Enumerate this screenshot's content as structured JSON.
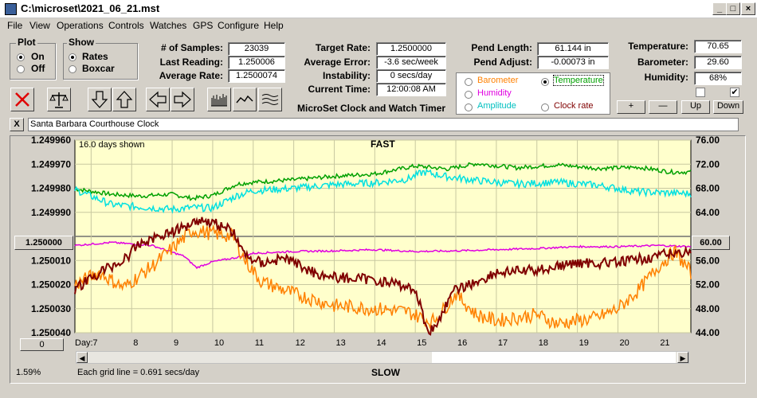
{
  "window": {
    "title": "C:\\microset\\2021_06_21.mst"
  },
  "menu": [
    "File",
    "View",
    "Operations",
    "Controls",
    "Watches",
    "GPS",
    "Configure",
    "Help"
  ],
  "plot": {
    "label": "Plot",
    "on": "On",
    "off": "Off",
    "selected": "On"
  },
  "show": {
    "label": "Show",
    "rates": "Rates",
    "boxcar": "Boxcar",
    "selected": "Rates"
  },
  "stats": {
    "samples_label": "# of Samples:",
    "samples": "23039",
    "last_label": "Last Reading:",
    "last": "1.250006",
    "avg_label": "Average Rate:",
    "avg": "1.2500074",
    "target_label": "Target Rate:",
    "target": "1.2500000",
    "avgerr_label": "Average Error:",
    "avgerr": "-3.6 sec/week",
    "instab_label": "Instability:",
    "instab": "0 secs/day",
    "time_label": "Current Time:",
    "time": "12:00:08 AM",
    "pendlen_label": "Pend Length:",
    "pendlen": "61.144 in",
    "pendadj_label": "Pend Adjust:",
    "pendadj": "-0.00073 in",
    "temp_label": "Temperature:",
    "temp": "70.65",
    "baro_label": "Barometer:",
    "baro": "29.60",
    "hum_label": "Humidity:",
    "hum": "68%"
  },
  "app_title": "MicroSet Clock and Watch Timer",
  "aux": {
    "barometer": "Barometer",
    "temperature": "Temperature",
    "humidity": "Humidity",
    "amplitude": "Amplitude",
    "clockrate": "Clock rate",
    "selected": "Temperature",
    "colors": {
      "barometer": "#ff8000",
      "temperature": "#00a000",
      "humidity": "#e000e0",
      "amplitude": "#00c0c0",
      "clockrate": "#800000"
    }
  },
  "small_buttons": {
    "plus": "+",
    "minus": "—",
    "up": "Up",
    "down": "Down"
  },
  "checkboxes": [
    {
      "checked": false
    },
    {
      "checked": true
    }
  ],
  "clock_name": "Santa Barbara Courthouse Clock",
  "close_x": "X",
  "chart_top": {
    "days": "16.0 days shown",
    "fast": "FAST"
  },
  "chart_bottom": {
    "day_label": "Day:",
    "grid": "Each grid line = 0.691 secs/day",
    "slow": "SLOW",
    "percent": "1.59%",
    "zero_button": "0"
  },
  "center_buttons": {
    "left": "1.250000",
    "right": "60.00"
  },
  "chart_data": {
    "type": "line",
    "x_label": "Day:",
    "x_ticks": [
      7,
      8,
      9,
      10,
      11,
      12,
      13,
      14,
      15,
      16,
      17,
      18,
      19,
      20,
      21
    ],
    "xlim": [
      6.6,
      21.8
    ],
    "y_left_ticks": [
      "1.249960",
      "1.249970",
      "1.249980",
      "1.249990",
      "1.250000",
      "1.250010",
      "1.250020",
      "1.250030",
      "1.250040"
    ],
    "y_left_range": [
      1.24996,
      1.25004
    ],
    "y_right_ticks": [
      "76.00",
      "72.00",
      "68.00",
      "64.00",
      "60.00",
      "56.00",
      "52.00",
      "48.00",
      "44.00"
    ],
    "y_right_range": [
      76,
      44
    ],
    "series": [
      {
        "key": "temperature",
        "color": "#00a000",
        "axis": "right",
        "x": [
          6.6,
          7.5,
          8.2,
          9.0,
          9.5,
          10.0,
          10.6,
          11.0,
          12.0,
          13.0,
          14.0,
          15.0,
          15.8,
          16.5,
          17.5,
          18.5,
          19.5,
          20.5,
          21.3,
          21.8
        ],
        "y": [
          67.9,
          67.0,
          66.7,
          67.0,
          66.3,
          66.8,
          68.7,
          69.0,
          69.4,
          70.0,
          70.4,
          71.7,
          71.2,
          72.1,
          71.4,
          71.9,
          71.3,
          71.5,
          70.7,
          70.7
        ]
      },
      {
        "key": "amplitude",
        "color": "#00e0e0",
        "axis": "right",
        "x": [
          6.6,
          7.5,
          8.0,
          9.0,
          9.5,
          10.0,
          10.6,
          11.0,
          12.0,
          13.0,
          14.0,
          14.8,
          15.2,
          15.8,
          16.5,
          17.5,
          18.5,
          19.5,
          20.5,
          21.8
        ],
        "y": [
          67.8,
          65.3,
          65.0,
          64.5,
          64.8,
          64.7,
          66.8,
          67.6,
          68.0,
          68.6,
          68.9,
          69.5,
          70.7,
          69.9,
          69.3,
          68.7,
          69.0,
          68.5,
          67.4,
          67.1
        ]
      },
      {
        "key": "humidity",
        "color": "#e000e0",
        "axis": "right",
        "x": [
          6.6,
          7.5,
          8.5,
          9.3,
          9.6,
          10.0,
          10.6,
          11.0,
          12.0,
          13.0,
          14.0,
          15.0,
          16.0,
          17.0,
          18.0,
          19.0,
          20.0,
          21.0,
          21.8
        ],
        "y": [
          58.5,
          59.0,
          58.5,
          56.7,
          54.8,
          55.8,
          56.5,
          57.2,
          57.5,
          57.6,
          57.8,
          57.5,
          57.6,
          57.8,
          58.0,
          58.3,
          58.3,
          58.5,
          58.3
        ]
      },
      {
        "key": "barometer",
        "color": "#ff8000",
        "axis": "right",
        "x": [
          6.6,
          7.2,
          7.8,
          8.5,
          9.0,
          9.5,
          10.0,
          10.5,
          10.8,
          11.2,
          12.0,
          13.0,
          14.0,
          14.8,
          15.4,
          15.6,
          16.0,
          16.5,
          17.0,
          18.0,
          18.5,
          19.0,
          19.5,
          20.0,
          20.5,
          21.0,
          21.4,
          21.8
        ],
        "y": [
          52.0,
          54.0,
          51.5,
          55.0,
          58.0,
          61.0,
          60.5,
          60.0,
          56.0,
          52.5,
          50.5,
          48.5,
          48.0,
          47.5,
          45.8,
          47.0,
          50.5,
          47.0,
          46.0,
          47.0,
          45.5,
          46.0,
          46.5,
          48.0,
          51.0,
          55.0,
          57.5,
          54.0
        ]
      },
      {
        "key": "clockrate",
        "color": "#800000",
        "axis": "left",
        "x": [
          6.6,
          7.3,
          7.8,
          8.2,
          8.8,
          9.2,
          9.6,
          10.0,
          10.5,
          10.8,
          11.2,
          11.8,
          12.5,
          13.0,
          14.0,
          14.6,
          15.0,
          15.3,
          15.5,
          15.7,
          16.0,
          16.5,
          17.0,
          18.0,
          19.0,
          20.0,
          21.0,
          21.8
        ],
        "y": [
          1.250022,
          1.250014,
          1.25001,
          1.250003,
          1.249999,
          1.249997,
          1.249993,
          1.249994,
          1.249998,
          1.250008,
          1.250011,
          1.250009,
          1.250015,
          1.250017,
          1.250018,
          1.25002,
          1.250022,
          1.250039,
          1.250038,
          1.25003,
          1.250022,
          1.250019,
          1.250015,
          1.250014,
          1.250011,
          1.250011,
          1.250008,
          1.250006
        ]
      }
    ]
  }
}
